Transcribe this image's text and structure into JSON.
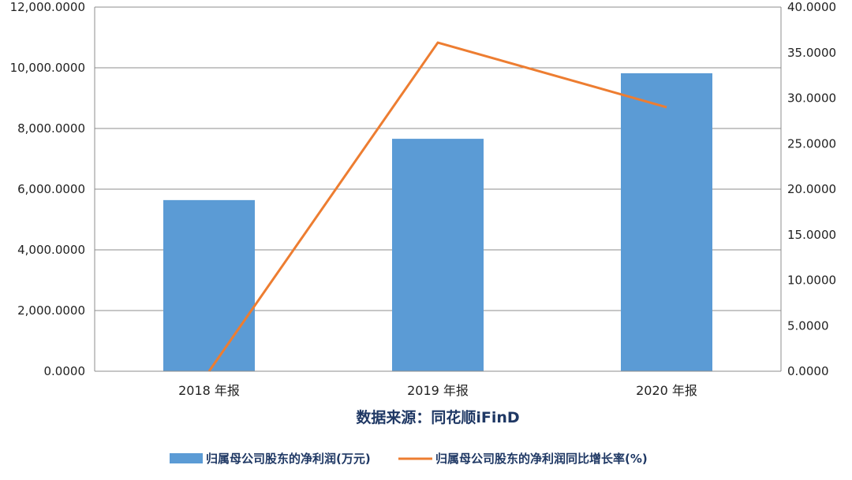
{
  "chart_data": {
    "type": "bar",
    "categories": [
      "2018 年报",
      "2019 年报",
      "2020 年报"
    ],
    "series": [
      {
        "name": "归属母公司股东的净利润(万元)",
        "kind": "bar",
        "axis": "left",
        "color": "#5b9bd5",
        "values": [
          5640,
          7660,
          9820
        ]
      },
      {
        "name": "归属母公司股东的净利润同比增长率(%)",
        "kind": "line",
        "axis": "right",
        "color": "#ed7d31",
        "values": [
          0.0,
          36.1,
          29.0
        ]
      }
    ],
    "left_axis": {
      "ylim": [
        0,
        12000
      ],
      "ticks": [
        "0.0000",
        "2,000.0000",
        "4,000.0000",
        "6,000.0000",
        "8,000.0000",
        "10,000.0000",
        "12,000.0000"
      ]
    },
    "right_axis": {
      "ylim": [
        0,
        40
      ],
      "ticks": [
        "0.0000",
        "5.0000",
        "10.0000",
        "15.0000",
        "20.0000",
        "25.0000",
        "30.0000",
        "35.0000",
        "40.0000"
      ]
    },
    "source_note": "数据来源：同花顺iFinD",
    "legend_position": "bottom"
  }
}
